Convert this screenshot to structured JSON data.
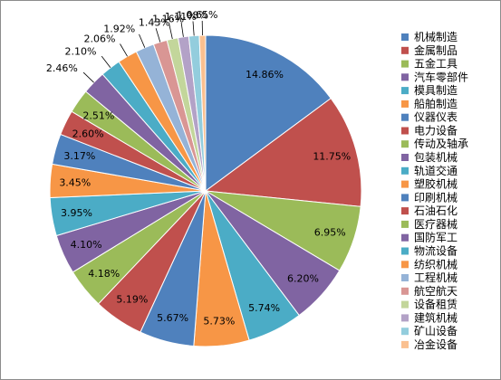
{
  "chart_data": {
    "type": "pie",
    "title": "",
    "categories": [
      "机械制造",
      "金属制品",
      "五金工具",
      "汽车零部件",
      "模具制造",
      "船舶制造",
      "仪器仪表",
      "电力设备",
      "传动及轴承",
      "包装机械",
      "轨道交通",
      "塑胶机械",
      "印刷机械",
      "石油石化",
      "医疗器械",
      "国防军工",
      "物流设备",
      "纺织机械",
      "工程机械",
      "航空航天",
      "设备租赁",
      "建筑机械",
      "矿山设备",
      "冶金设备"
    ],
    "values": [
      14.86,
      11.75,
      6.95,
      6.2,
      5.74,
      5.73,
      5.67,
      5.19,
      4.18,
      4.1,
      3.95,
      3.45,
      3.17,
      2.6,
      2.51,
      2.46,
      2.1,
      2.06,
      1.92,
      1.43,
      1.16,
      1.11,
      1.08,
      0.65
    ],
    "data_labels": [
      "14.86%",
      "11.75%",
      "6.95%",
      "6.20%",
      "5.74%",
      "5.73%",
      "5.67%",
      "5.19%",
      "4.18%",
      "4.10%",
      "3.95%",
      "3.45%",
      "3.17%",
      "2.60%",
      "2.51%",
      "2.46%",
      "2.10%",
      "2.06%",
      "1.92%",
      "1.43%",
      "1.16%",
      "1.11%",
      "1.08%",
      "0.65%"
    ],
    "colors": [
      "#4F81BD",
      "#C0504D",
      "#9BBB59",
      "#8064A2",
      "#4BACC6",
      "#F79646",
      "#4F81BD",
      "#C0504D",
      "#9BBB59",
      "#8064A2",
      "#4BACC6",
      "#F79646",
      "#4F81BD",
      "#C0504D",
      "#9BBB59",
      "#8064A2",
      "#4BACC6",
      "#F79646",
      "#95B3D7",
      "#D99694",
      "#C3D69B",
      "#B3A2C7",
      "#93CDDD",
      "#FAC090"
    ],
    "legend_position": "right",
    "start_angle_deg": 0,
    "direction": "clockwise"
  }
}
